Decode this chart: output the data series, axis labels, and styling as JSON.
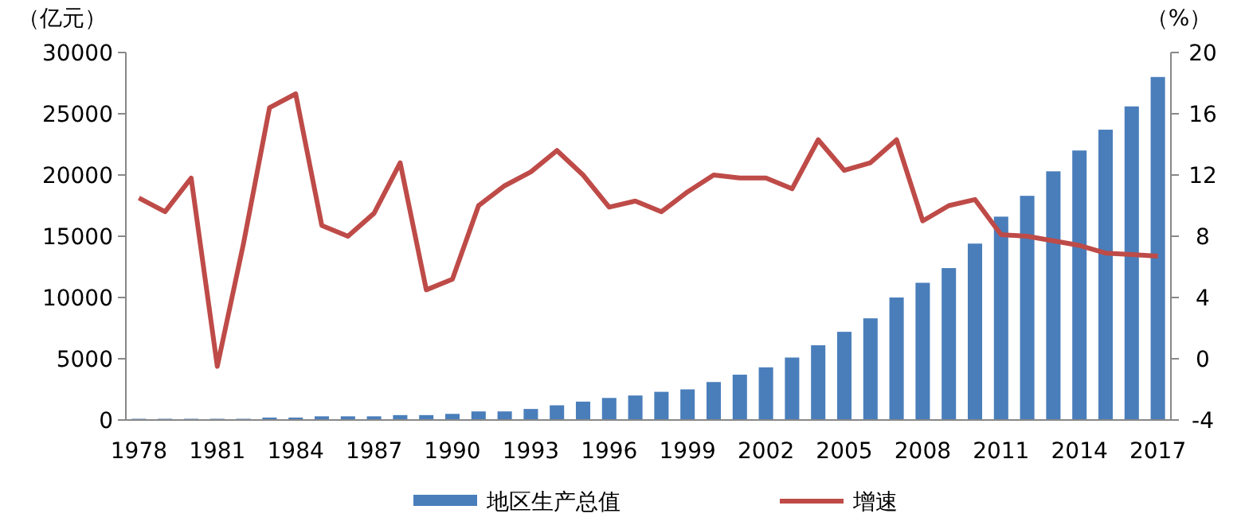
{
  "chart_data": {
    "type": "bar",
    "ylabel": "（亿元）",
    "y2label": "（%）",
    "categories": [
      "1978",
      null,
      null,
      "1981",
      null,
      null,
      "1984",
      null,
      null,
      "1987",
      null,
      null,
      "1990",
      null,
      null,
      "1993",
      null,
      null,
      "1996",
      null,
      null,
      "1999",
      null,
      null,
      "2002",
      null,
      null,
      "2005",
      null,
      null,
      "2008",
      null,
      null,
      "2011",
      null,
      null,
      "2014",
      null,
      null,
      "2017"
    ],
    "series": [
      {
        "name": "地区生产总值",
        "color": "#4a7ebb",
        "values": [
          100,
          100,
          100,
          100,
          100,
          200,
          200,
          300,
          300,
          300,
          400,
          400,
          500,
          700,
          700,
          900,
          1200,
          1500,
          1800,
          2000,
          2300,
          2500,
          3100,
          3700,
          4300,
          5100,
          6100,
          7200,
          8300,
          10000,
          11200,
          12400,
          14400,
          16600,
          18300,
          20300,
          22000,
          23700,
          25600,
          28000
        ]
      },
      {
        "name": "增速",
        "type": "line",
        "axis": "y2",
        "color": "#be4b48",
        "values": [
          10.5,
          9.6,
          11.8,
          -0.5,
          7.5,
          16.4,
          17.3,
          8.7,
          8.0,
          9.5,
          12.8,
          4.5,
          5.2,
          10.0,
          11.3,
          12.2,
          13.6,
          12.0,
          9.9,
          10.3,
          9.6,
          10.9,
          12.0,
          11.8,
          11.8,
          11.1,
          14.3,
          12.3,
          12.8,
          14.3,
          9.0,
          10.0,
          10.4,
          8.1,
          8.0,
          7.7,
          7.4,
          6.9,
          6.8,
          6.7
        ]
      }
    ],
    "ylim": [
      0,
      30000
    ],
    "yticks": [
      0,
      5000,
      10000,
      15000,
      20000,
      25000,
      30000
    ],
    "y2lim": [
      -4,
      20
    ],
    "y2ticks": [
      -4,
      0,
      4,
      8,
      12,
      16,
      20
    ],
    "grid": false,
    "legend": "bottom",
    "marker": "none",
    "line_style": "solid"
  }
}
